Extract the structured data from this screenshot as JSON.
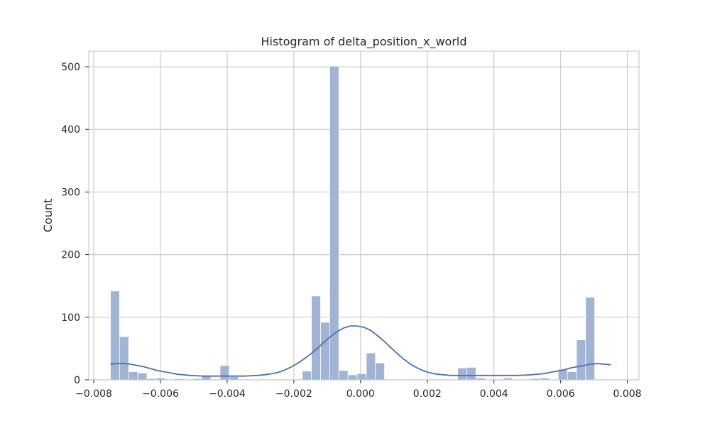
{
  "chart_data": {
    "type": "bar",
    "title": "Histogram of delta_position_x_world",
    "xlabel": "",
    "ylabel": "Count",
    "xlim": [
      -0.00815,
      0.00835
    ],
    "ylim": [
      0,
      525
    ],
    "grid": true,
    "xticks": [
      -0.008,
      -0.006,
      -0.004,
      -0.002,
      0.0,
      0.002,
      0.004,
      0.006,
      0.008
    ],
    "xtick_labels": [
      "−0.008",
      "−0.006",
      "−0.004",
      "−0.002",
      "0.000",
      "0.002",
      "0.004",
      "0.006",
      "0.008"
    ],
    "yticks": [
      0,
      100,
      200,
      300,
      400,
      500
    ],
    "ytick_labels": [
      "0",
      "100",
      "200",
      "300",
      "400",
      "500"
    ],
    "bar_color": "#a1b4d4",
    "bar_edge_color": "#ffffff",
    "line_color": "#4c72b0",
    "bins": {
      "start": -0.0075,
      "width": 0.000274,
      "counts": [
        142,
        69,
        13,
        11,
        2,
        3,
        0,
        2,
        0,
        2,
        6,
        0,
        23,
        5,
        0,
        0,
        0,
        0,
        0,
        0,
        0,
        14,
        134,
        92,
        501,
        15,
        8,
        10,
        43,
        27,
        0,
        0,
        0,
        0,
        0,
        0,
        0,
        0,
        19,
        20,
        3,
        0,
        0,
        3,
        0,
        0,
        2,
        3,
        0,
        17,
        13,
        64,
        132
      ]
    },
    "kde": {
      "x": [
        -0.0075,
        -0.0073,
        -0.0071,
        -0.0069,
        -0.0067,
        -0.0065,
        -0.0063,
        -0.0061,
        -0.0059,
        -0.0057,
        -0.0055,
        -0.0053,
        -0.0051,
        -0.0049,
        -0.0047,
        -0.0045,
        -0.0043,
        -0.0041,
        -0.0039,
        -0.0037,
        -0.0035,
        -0.0033,
        -0.0031,
        -0.0029,
        -0.0027,
        -0.0025,
        -0.0023,
        -0.0021,
        -0.0019,
        -0.0017,
        -0.0015,
        -0.0013,
        -0.0011,
        -0.0009,
        -0.0007,
        -0.0005,
        -0.0003,
        -0.0001,
        0.0001,
        0.0003,
        0.0005,
        0.0007,
        0.0009,
        0.0011,
        0.0013,
        0.0015,
        0.0017,
        0.0019,
        0.0021,
        0.0023,
        0.0025,
        0.0027,
        0.0029,
        0.0031,
        0.0033,
        0.0035,
        0.0037,
        0.0039,
        0.0041,
        0.0043,
        0.0045,
        0.0047,
        0.0049,
        0.0051,
        0.0053,
        0.0055,
        0.0057,
        0.0059,
        0.0061,
        0.0063,
        0.0065,
        0.0067,
        0.0069,
        0.0071,
        0.0073,
        0.0075
      ],
      "y": [
        25,
        26,
        26,
        25,
        23,
        21,
        18,
        15,
        13,
        11,
        9,
        8,
        7,
        6.5,
        6,
        6,
        6,
        6,
        6,
        6,
        6,
        6.5,
        7,
        8,
        9.5,
        11.5,
        15,
        20,
        26,
        33,
        41,
        50,
        60,
        69,
        77,
        83,
        86,
        86,
        84,
        79,
        71,
        62,
        52,
        42,
        33,
        25,
        19,
        14,
        11,
        9,
        8,
        7,
        7,
        7,
        7,
        7,
        7,
        7,
        7,
        7,
        7,
        7,
        7.5,
        8,
        9,
        10,
        12,
        14,
        16,
        19,
        21,
        23,
        25,
        26,
        25,
        24
      ]
    }
  }
}
